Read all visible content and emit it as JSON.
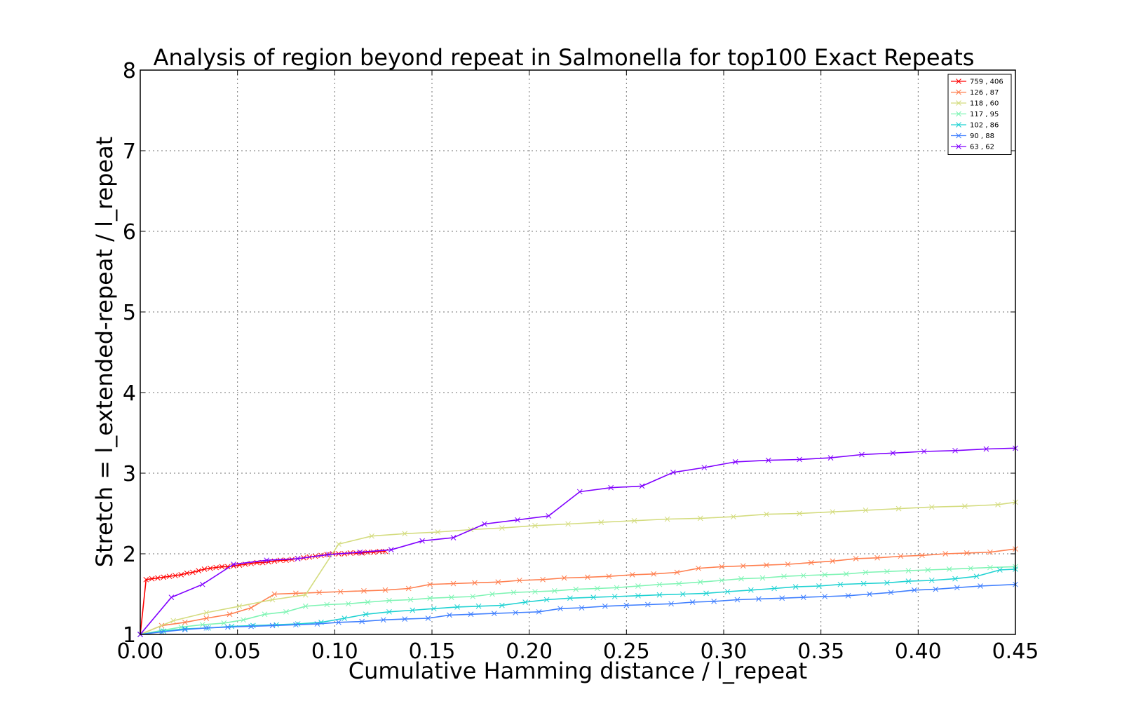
{
  "chart_data": {
    "type": "line",
    "title": "Analysis of region beyond repeat in Salmonella for top100 Exact Repeats",
    "xlabel": "Cumulative Hamming distance / l_repeat",
    "ylabel": "Stretch =  l_extended-repeat / l_repeat",
    "xlim": [
      0.0,
      0.45
    ],
    "ylim": [
      1,
      8
    ],
    "xticks": [
      "0.00",
      "0.05",
      "0.10",
      "0.15",
      "0.20",
      "0.25",
      "0.30",
      "0.35",
      "0.40",
      "0.45"
    ],
    "yticks": [
      "1",
      "2",
      "3",
      "4",
      "5",
      "6",
      "7",
      "8"
    ],
    "grid": true,
    "legend_position": "top-right",
    "marker": "x",
    "series": [
      {
        "name": "759 , 406",
        "color": "#ff0000",
        "points": [
          [
            0.0,
            1.0
          ],
          [
            0.003,
            1.68
          ],
          [
            0.006,
            1.69
          ],
          [
            0.009,
            1.7
          ],
          [
            0.012,
            1.71
          ],
          [
            0.015,
            1.72
          ],
          [
            0.018,
            1.73
          ],
          [
            0.021,
            1.74
          ],
          [
            0.024,
            1.76
          ],
          [
            0.027,
            1.77
          ],
          [
            0.03,
            1.79
          ],
          [
            0.033,
            1.81
          ],
          [
            0.036,
            1.82
          ],
          [
            0.039,
            1.83
          ],
          [
            0.042,
            1.84
          ],
          [
            0.045,
            1.84
          ],
          [
            0.048,
            1.85
          ],
          [
            0.051,
            1.86
          ],
          [
            0.054,
            1.87
          ],
          [
            0.057,
            1.88
          ],
          [
            0.06,
            1.89
          ],
          [
            0.063,
            1.89
          ],
          [
            0.066,
            1.9
          ],
          [
            0.069,
            1.91
          ],
          [
            0.072,
            1.92
          ],
          [
            0.075,
            1.92
          ],
          [
            0.078,
            1.93
          ],
          [
            0.081,
            1.94
          ],
          [
            0.084,
            1.95
          ],
          [
            0.087,
            1.96
          ],
          [
            0.09,
            1.97
          ],
          [
            0.093,
            1.98
          ],
          [
            0.096,
            1.99
          ],
          [
            0.099,
            2.0
          ],
          [
            0.102,
            2.0
          ],
          [
            0.105,
            2.0
          ],
          [
            0.108,
            2.01
          ],
          [
            0.111,
            2.01
          ],
          [
            0.114,
            2.01
          ],
          [
            0.117,
            2.02
          ],
          [
            0.12,
            2.02
          ],
          [
            0.123,
            2.03
          ],
          [
            0.126,
            2.03
          ]
        ]
      },
      {
        "name": "126 , 87",
        "color": "#ff7f4f",
        "points": [
          [
            0.0,
            1.0
          ],
          [
            0.011,
            1.11
          ],
          [
            0.023,
            1.15
          ],
          [
            0.034,
            1.2
          ],
          [
            0.046,
            1.25
          ],
          [
            0.057,
            1.33
          ],
          [
            0.069,
            1.5
          ],
          [
            0.08,
            1.51
          ],
          [
            0.092,
            1.52
          ],
          [
            0.103,
            1.53
          ],
          [
            0.115,
            1.54
          ],
          [
            0.126,
            1.55
          ],
          [
            0.138,
            1.57
          ],
          [
            0.149,
            1.62
          ],
          [
            0.161,
            1.63
          ],
          [
            0.172,
            1.64
          ],
          [
            0.184,
            1.65
          ],
          [
            0.195,
            1.67
          ],
          [
            0.207,
            1.68
          ],
          [
            0.218,
            1.7
          ],
          [
            0.23,
            1.71
          ],
          [
            0.241,
            1.72
          ],
          [
            0.253,
            1.74
          ],
          [
            0.264,
            1.75
          ],
          [
            0.276,
            1.77
          ],
          [
            0.287,
            1.82
          ],
          [
            0.299,
            1.84
          ],
          [
            0.31,
            1.85
          ],
          [
            0.322,
            1.86
          ],
          [
            0.333,
            1.87
          ],
          [
            0.345,
            1.89
          ],
          [
            0.356,
            1.91
          ],
          [
            0.368,
            1.94
          ],
          [
            0.379,
            1.95
          ],
          [
            0.391,
            1.97
          ],
          [
            0.402,
            1.98
          ],
          [
            0.414,
            2.0
          ],
          [
            0.425,
            2.01
          ],
          [
            0.437,
            2.02
          ],
          [
            0.45,
            2.06
          ]
        ]
      },
      {
        "name": "118 , 60",
        "color": "#d4dc7f",
        "points": [
          [
            0.0,
            1.0
          ],
          [
            0.017,
            1.17
          ],
          [
            0.034,
            1.27
          ],
          [
            0.051,
            1.35
          ],
          [
            0.068,
            1.43
          ],
          [
            0.085,
            1.49
          ],
          [
            0.102,
            2.12
          ],
          [
            0.119,
            2.22
          ],
          [
            0.136,
            2.25
          ],
          [
            0.153,
            2.27
          ],
          [
            0.17,
            2.3
          ],
          [
            0.186,
            2.32
          ],
          [
            0.203,
            2.35
          ],
          [
            0.22,
            2.37
          ],
          [
            0.237,
            2.39
          ],
          [
            0.254,
            2.41
          ],
          [
            0.271,
            2.43
          ],
          [
            0.288,
            2.44
          ],
          [
            0.305,
            2.46
          ],
          [
            0.322,
            2.49
          ],
          [
            0.339,
            2.5
          ],
          [
            0.356,
            2.52
          ],
          [
            0.373,
            2.54
          ],
          [
            0.39,
            2.56
          ],
          [
            0.407,
            2.58
          ],
          [
            0.424,
            2.59
          ],
          [
            0.441,
            2.61
          ],
          [
            0.45,
            2.64
          ]
        ]
      },
      {
        "name": "117 , 95",
        "color": "#7ff4b4",
        "points": [
          [
            0.0,
            1.0
          ],
          [
            0.011,
            1.05
          ],
          [
            0.021,
            1.09
          ],
          [
            0.032,
            1.12
          ],
          [
            0.043,
            1.14
          ],
          [
            0.053,
            1.18
          ],
          [
            0.064,
            1.25
          ],
          [
            0.075,
            1.28
          ],
          [
            0.085,
            1.35
          ],
          [
            0.096,
            1.37
          ],
          [
            0.107,
            1.38
          ],
          [
            0.117,
            1.4
          ],
          [
            0.128,
            1.42
          ],
          [
            0.139,
            1.43
          ],
          [
            0.149,
            1.45
          ],
          [
            0.16,
            1.46
          ],
          [
            0.171,
            1.47
          ],
          [
            0.181,
            1.5
          ],
          [
            0.192,
            1.52
          ],
          [
            0.203,
            1.53
          ],
          [
            0.213,
            1.54
          ],
          [
            0.224,
            1.56
          ],
          [
            0.235,
            1.57
          ],
          [
            0.245,
            1.58
          ],
          [
            0.256,
            1.6
          ],
          [
            0.267,
            1.62
          ],
          [
            0.277,
            1.63
          ],
          [
            0.288,
            1.65
          ],
          [
            0.299,
            1.67
          ],
          [
            0.309,
            1.69
          ],
          [
            0.32,
            1.7
          ],
          [
            0.331,
            1.72
          ],
          [
            0.341,
            1.73
          ],
          [
            0.352,
            1.74
          ],
          [
            0.363,
            1.75
          ],
          [
            0.373,
            1.77
          ],
          [
            0.384,
            1.78
          ],
          [
            0.395,
            1.79
          ],
          [
            0.405,
            1.8
          ],
          [
            0.416,
            1.81
          ],
          [
            0.427,
            1.82
          ],
          [
            0.437,
            1.83
          ],
          [
            0.45,
            1.84
          ]
        ]
      },
      {
        "name": "102 , 86",
        "color": "#1fd2d2",
        "points": [
          [
            0.0,
            1.0
          ],
          [
            0.012,
            1.04
          ],
          [
            0.023,
            1.07
          ],
          [
            0.035,
            1.08
          ],
          [
            0.047,
            1.1
          ],
          [
            0.058,
            1.11
          ],
          [
            0.07,
            1.12
          ],
          [
            0.081,
            1.13
          ],
          [
            0.093,
            1.15
          ],
          [
            0.105,
            1.2
          ],
          [
            0.116,
            1.25
          ],
          [
            0.128,
            1.28
          ],
          [
            0.14,
            1.3
          ],
          [
            0.151,
            1.32
          ],
          [
            0.163,
            1.34
          ],
          [
            0.174,
            1.35
          ],
          [
            0.186,
            1.36
          ],
          [
            0.198,
            1.4
          ],
          [
            0.209,
            1.43
          ],
          [
            0.221,
            1.45
          ],
          [
            0.233,
            1.46
          ],
          [
            0.244,
            1.47
          ],
          [
            0.256,
            1.48
          ],
          [
            0.267,
            1.49
          ],
          [
            0.279,
            1.5
          ],
          [
            0.291,
            1.51
          ],
          [
            0.302,
            1.53
          ],
          [
            0.314,
            1.55
          ],
          [
            0.326,
            1.57
          ],
          [
            0.337,
            1.59
          ],
          [
            0.349,
            1.6
          ],
          [
            0.36,
            1.62
          ],
          [
            0.372,
            1.63
          ],
          [
            0.384,
            1.64
          ],
          [
            0.395,
            1.66
          ],
          [
            0.407,
            1.67
          ],
          [
            0.419,
            1.69
          ],
          [
            0.43,
            1.72
          ],
          [
            0.442,
            1.8
          ],
          [
            0.45,
            1.81
          ]
        ]
      },
      {
        "name": "90 , 88",
        "color": "#3f7fff",
        "points": [
          [
            0.0,
            1.0
          ],
          [
            0.011,
            1.03
          ],
          [
            0.023,
            1.06
          ],
          [
            0.034,
            1.08
          ],
          [
            0.045,
            1.09
          ],
          [
            0.057,
            1.1
          ],
          [
            0.068,
            1.11
          ],
          [
            0.08,
            1.12
          ],
          [
            0.091,
            1.13
          ],
          [
            0.102,
            1.15
          ],
          [
            0.114,
            1.16
          ],
          [
            0.125,
            1.18
          ],
          [
            0.136,
            1.19
          ],
          [
            0.148,
            1.2
          ],
          [
            0.159,
            1.24
          ],
          [
            0.17,
            1.25
          ],
          [
            0.182,
            1.26
          ],
          [
            0.193,
            1.27
          ],
          [
            0.205,
            1.28
          ],
          [
            0.216,
            1.32
          ],
          [
            0.227,
            1.33
          ],
          [
            0.239,
            1.35
          ],
          [
            0.25,
            1.36
          ],
          [
            0.261,
            1.37
          ],
          [
            0.273,
            1.38
          ],
          [
            0.284,
            1.4
          ],
          [
            0.295,
            1.41
          ],
          [
            0.307,
            1.43
          ],
          [
            0.318,
            1.44
          ],
          [
            0.33,
            1.45
          ],
          [
            0.341,
            1.46
          ],
          [
            0.352,
            1.47
          ],
          [
            0.364,
            1.48
          ],
          [
            0.375,
            1.5
          ],
          [
            0.386,
            1.52
          ],
          [
            0.398,
            1.55
          ],
          [
            0.409,
            1.56
          ],
          [
            0.42,
            1.58
          ],
          [
            0.432,
            1.6
          ],
          [
            0.45,
            1.62
          ]
        ]
      },
      {
        "name": "63 , 62",
        "color": "#8000ff",
        "points": [
          [
            0.0,
            1.0
          ],
          [
            0.016,
            1.46
          ],
          [
            0.032,
            1.62
          ],
          [
            0.048,
            1.87
          ],
          [
            0.065,
            1.92
          ],
          [
            0.081,
            1.94
          ],
          [
            0.097,
            1.99
          ],
          [
            0.113,
            2.02
          ],
          [
            0.129,
            2.05
          ],
          [
            0.145,
            2.16
          ],
          [
            0.161,
            2.2
          ],
          [
            0.177,
            2.37
          ],
          [
            0.194,
            2.42
          ],
          [
            0.21,
            2.47
          ],
          [
            0.226,
            2.77
          ],
          [
            0.242,
            2.82
          ],
          [
            0.258,
            2.84
          ],
          [
            0.274,
            3.01
          ],
          [
            0.29,
            3.07
          ],
          [
            0.306,
            3.14
          ],
          [
            0.323,
            3.16
          ],
          [
            0.339,
            3.17
          ],
          [
            0.355,
            3.19
          ],
          [
            0.371,
            3.23
          ],
          [
            0.387,
            3.25
          ],
          [
            0.403,
            3.27
          ],
          [
            0.419,
            3.28
          ],
          [
            0.435,
            3.3
          ],
          [
            0.45,
            3.31
          ]
        ]
      }
    ]
  }
}
